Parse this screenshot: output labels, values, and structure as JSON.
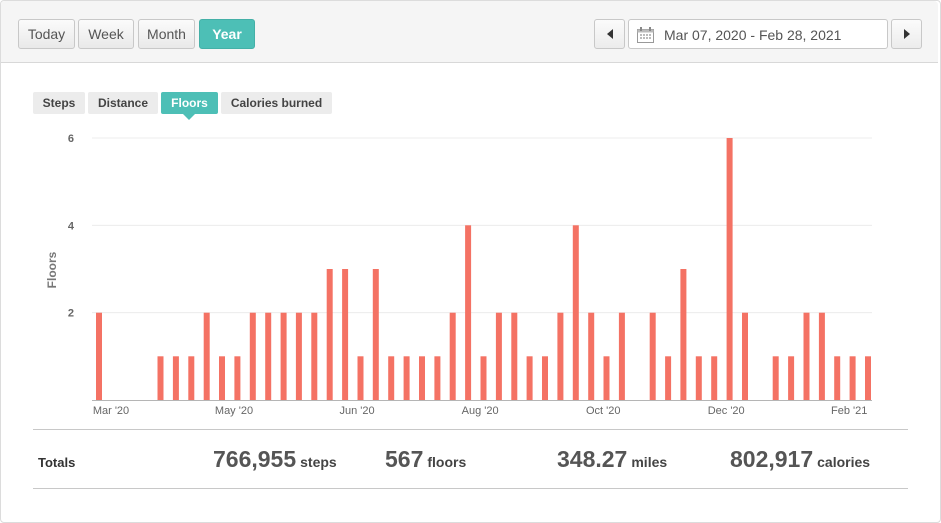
{
  "header": {
    "periods": [
      "Today",
      "Week",
      "Month",
      "Year"
    ],
    "active_period": "Year",
    "date_range": "Mar 07, 2020 - Feb 28, 2021",
    "prev_icon": "caret-left-icon",
    "next_icon": "caret-right-icon",
    "calendar_icon": "calendar-icon"
  },
  "metric_tabs": [
    "Steps",
    "Distance",
    "Floors",
    "Calories burned"
  ],
  "active_metric": "Floors",
  "colors": {
    "accent": "#4dbfb6",
    "bar": "#f47264"
  },
  "chart_data": {
    "type": "bar",
    "ylabel": "Floors",
    "ylim": [
      0,
      6
    ],
    "yticks": [
      2,
      4,
      6
    ],
    "grid": true,
    "x_tick_labels": [
      "Mar '20",
      "May '20",
      "Jun '20",
      "Aug '20",
      "Oct '20",
      "Dec '20",
      "Feb '21"
    ],
    "x_tick_index": [
      0,
      8,
      16,
      24,
      32,
      40,
      48
    ],
    "values": [
      2,
      0,
      0,
      0,
      1,
      1,
      1,
      2,
      1,
      1,
      2,
      2,
      2,
      2,
      2,
      3,
      3,
      1,
      3,
      1,
      1,
      1,
      1,
      2,
      4,
      1,
      2,
      2,
      1,
      1,
      2,
      4,
      2,
      1,
      2,
      0,
      2,
      1,
      3,
      1,
      1,
      6,
      2,
      0,
      1,
      1,
      2,
      2,
      1,
      1,
      1
    ]
  },
  "totals": {
    "label": "Totals",
    "items": [
      {
        "value": "766,955",
        "unit": "steps"
      },
      {
        "value": "567",
        "unit": "floors"
      },
      {
        "value": "348.27",
        "unit": "miles"
      },
      {
        "value": "802,917",
        "unit": "calories"
      }
    ]
  }
}
